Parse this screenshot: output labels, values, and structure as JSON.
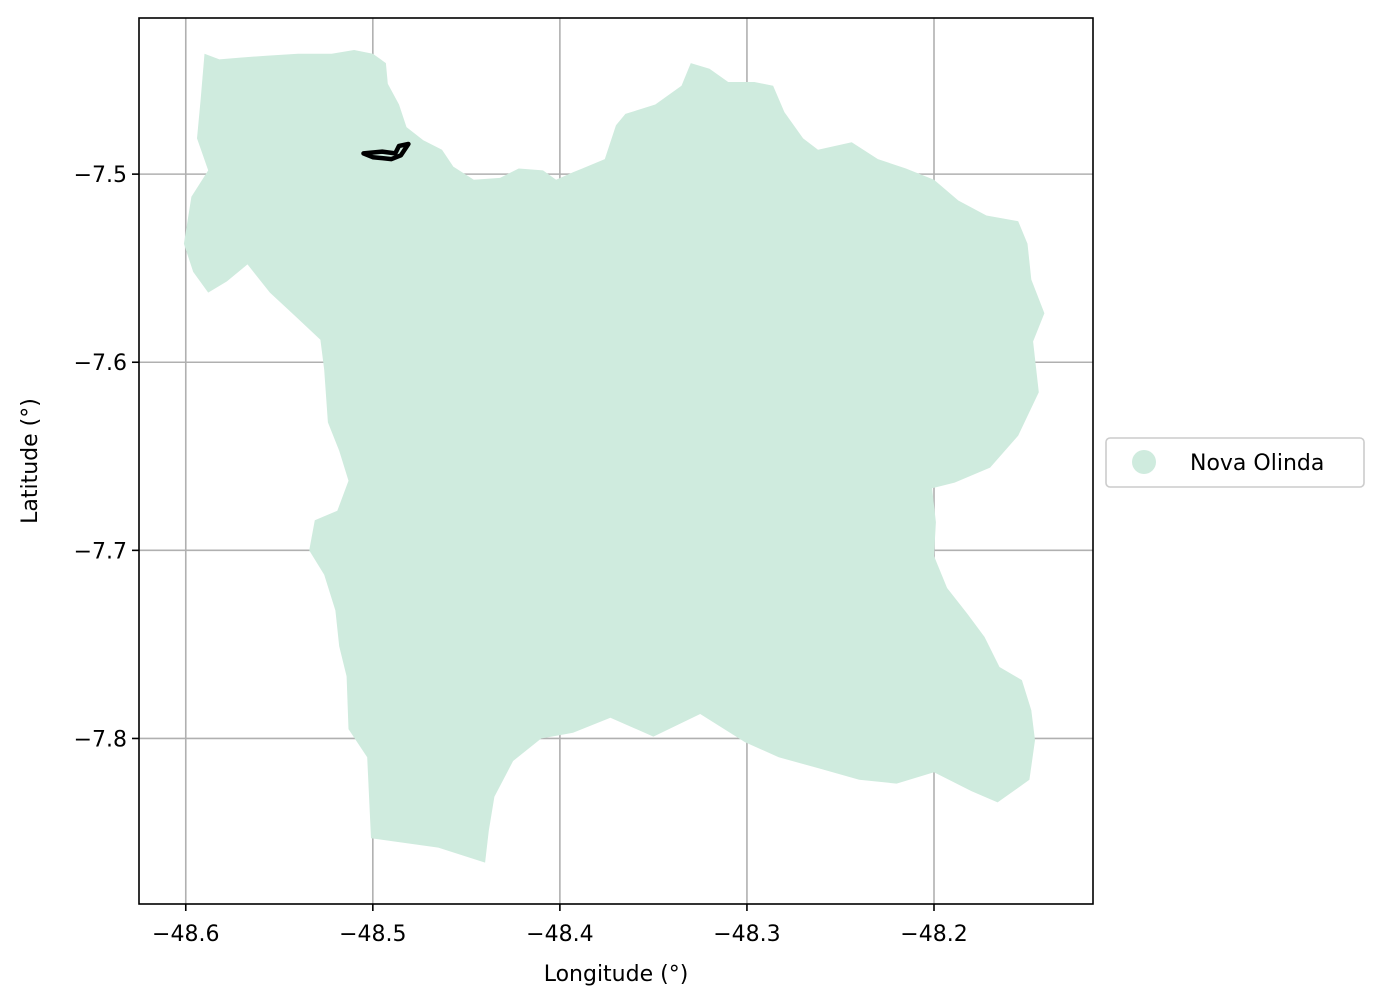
{
  "chart_data": {
    "type": "map",
    "xlabel": "Longitude (°)",
    "ylabel": "Latitude (°)",
    "xlim": [
      -48.625,
      -48.115
    ],
    "ylim": [
      -7.888,
      -7.417
    ],
    "grid": true,
    "legend_placement": "center-right outside",
    "x_ticks": [
      {
        "value": -48.6,
        "label": "−48.6"
      },
      {
        "value": -48.5,
        "label": "−48.5"
      },
      {
        "value": -48.4,
        "label": "−48.4"
      },
      {
        "value": -48.3,
        "label": "−48.3"
      },
      {
        "value": -48.2,
        "label": "−48.2"
      }
    ],
    "y_ticks": [
      {
        "value": -7.5,
        "label": "−7.5"
      },
      {
        "value": -7.6,
        "label": "−7.6"
      },
      {
        "value": -7.7,
        "label": "−7.7"
      },
      {
        "value": -7.8,
        "label": "−7.8"
      }
    ],
    "series": [
      {
        "name": "Nova Olinda",
        "color": "#cfebde",
        "polygon": [
          [
            -48.59,
            -7.436
          ],
          [
            -48.582,
            -7.439
          ],
          [
            -48.57,
            -7.438
          ],
          [
            -48.556,
            -7.437
          ],
          [
            -48.54,
            -7.436
          ],
          [
            -48.522,
            -7.436
          ],
          [
            -48.51,
            -7.434
          ],
          [
            -48.5,
            -7.436
          ],
          [
            -48.493,
            -7.441
          ],
          [
            -48.492,
            -7.452
          ],
          [
            -48.486,
            -7.463
          ],
          [
            -48.482,
            -7.475
          ],
          [
            -48.473,
            -7.482
          ],
          [
            -48.463,
            -7.487
          ],
          [
            -48.457,
            -7.496
          ],
          [
            -48.446,
            -7.503
          ],
          [
            -48.432,
            -7.502
          ],
          [
            -48.422,
            -7.497
          ],
          [
            -48.409,
            -7.498
          ],
          [
            -48.402,
            -7.503
          ],
          [
            -48.393,
            -7.499
          ],
          [
            -48.388,
            -7.497
          ],
          [
            -48.376,
            -7.492
          ],
          [
            -48.37,
            -7.474
          ],
          [
            -48.365,
            -7.468
          ],
          [
            -48.349,
            -7.463
          ],
          [
            -48.335,
            -7.453
          ],
          [
            -48.33,
            -7.441
          ],
          [
            -48.32,
            -7.444
          ],
          [
            -48.31,
            -7.451
          ],
          [
            -48.296,
            -7.451
          ],
          [
            -48.286,
            -7.453
          ],
          [
            -48.28,
            -7.467
          ],
          [
            -48.27,
            -7.481
          ],
          [
            -48.262,
            -7.487
          ],
          [
            -48.244,
            -7.483
          ],
          [
            -48.23,
            -7.492
          ],
          [
            -48.215,
            -7.497
          ],
          [
            -48.2,
            -7.503
          ],
          [
            -48.187,
            -7.514
          ],
          [
            -48.172,
            -7.522
          ],
          [
            -48.155,
            -7.525
          ],
          [
            -48.15,
            -7.537
          ],
          [
            -48.148,
            -7.556
          ],
          [
            -48.141,
            -7.574
          ],
          [
            -48.147,
            -7.589
          ],
          [
            -48.144,
            -7.616
          ],
          [
            -48.155,
            -7.639
          ],
          [
            -48.17,
            -7.656
          ],
          [
            -48.189,
            -7.664
          ],
          [
            -48.201,
            -7.667
          ],
          [
            -48.199,
            -7.685
          ],
          [
            -48.2,
            -7.703
          ],
          [
            -48.193,
            -7.72
          ],
          [
            -48.182,
            -7.734
          ],
          [
            -48.173,
            -7.746
          ],
          [
            -48.165,
            -7.762
          ],
          [
            -48.153,
            -7.769
          ],
          [
            -48.148,
            -7.785
          ],
          [
            -48.146,
            -7.801
          ],
          [
            -48.149,
            -7.822
          ],
          [
            -48.166,
            -7.834
          ],
          [
            -48.18,
            -7.828
          ],
          [
            -48.2,
            -7.818
          ],
          [
            -48.22,
            -7.824
          ],
          [
            -48.24,
            -7.822
          ],
          [
            -48.261,
            -7.816
          ],
          [
            -48.283,
            -7.81
          ],
          [
            -48.301,
            -7.802
          ],
          [
            -48.325,
            -7.787
          ],
          [
            -48.35,
            -7.799
          ],
          [
            -48.373,
            -7.789
          ],
          [
            -48.393,
            -7.797
          ],
          [
            -48.41,
            -7.8
          ],
          [
            -48.425,
            -7.812
          ],
          [
            -48.435,
            -7.831
          ],
          [
            -48.438,
            -7.849
          ],
          [
            -48.44,
            -7.866
          ],
          [
            -48.465,
            -7.858
          ],
          [
            -48.501,
            -7.853
          ],
          [
            -48.503,
            -7.81
          ],
          [
            -48.513,
            -7.795
          ],
          [
            -48.514,
            -7.767
          ],
          [
            -48.518,
            -7.751
          ],
          [
            -48.52,
            -7.732
          ],
          [
            -48.526,
            -7.713
          ],
          [
            -48.534,
            -7.7
          ],
          [
            -48.531,
            -7.684
          ],
          [
            -48.519,
            -7.679
          ],
          [
            -48.513,
            -7.663
          ],
          [
            -48.518,
            -7.647
          ],
          [
            -48.524,
            -7.632
          ],
          [
            -48.526,
            -7.604
          ],
          [
            -48.528,
            -7.588
          ],
          [
            -48.542,
            -7.575
          ],
          [
            -48.555,
            -7.563
          ],
          [
            -48.567,
            -7.548
          ],
          [
            -48.578,
            -7.557
          ],
          [
            -48.588,
            -7.563
          ],
          [
            -48.596,
            -7.552
          ],
          [
            -48.601,
            -7.537
          ],
          [
            -48.597,
            -7.512
          ],
          [
            -48.588,
            -7.498
          ],
          [
            -48.594,
            -7.481
          ],
          [
            -48.592,
            -7.46
          ]
        ]
      },
      {
        "name": "",
        "color": "#000000",
        "outline": [
          [
            -48.505,
            -7.489
          ],
          [
            -48.495,
            -7.488
          ],
          [
            -48.488,
            -7.489
          ],
          [
            -48.486,
            -7.485
          ],
          [
            -48.481,
            -7.484
          ],
          [
            -48.485,
            -7.49
          ],
          [
            -48.49,
            -7.492
          ],
          [
            -48.5,
            -7.491
          ],
          [
            -48.505,
            -7.489
          ]
        ]
      }
    ],
    "legend": [
      {
        "label": "Nova Olinda",
        "color": "#cfebde"
      }
    ]
  }
}
